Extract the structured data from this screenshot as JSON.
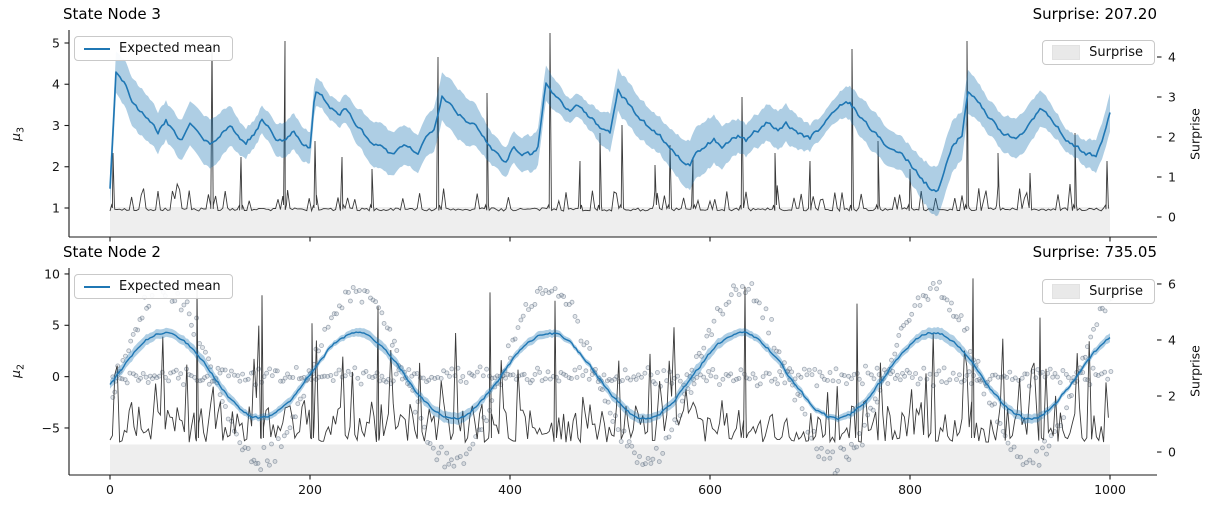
{
  "colors": {
    "background": "#ffffff",
    "mean_line": "#1f77b4",
    "mean_band_opacity": 0.36,
    "surprise_line": "#3a3a3a",
    "surprise_fill": "#eeeeee",
    "scatter_edge": "#55657a",
    "scatter_fill": "#7c8c9e",
    "axis_line": "#1a1a1a",
    "legend_patch": "#e9e9e9"
  },
  "chart_data": [
    {
      "type": "line",
      "title": "State Node 3",
      "right_title": "Surprise: 207.20",
      "ylabel_left_base": "μ",
      "ylabel_left_sub": "3",
      "ylabel_right": "Surprise",
      "legend_mean": "Expected mean",
      "legend_surprise": "Surprise",
      "x_range": [
        0,
        1000
      ],
      "x_ticks": [
        0,
        200,
        400,
        600,
        800,
        1000
      ],
      "x_ticklabels_visible": false,
      "ylim_left": [
        0.297,
        5.315
      ],
      "ylim_right": [
        -0.5,
        4.675
      ],
      "left_ticks": [
        5,
        4,
        3,
        2,
        1
      ],
      "right_ticks": [
        4,
        3,
        2,
        1,
        0
      ],
      "seed": 7,
      "series": {
        "expected_mean": {
          "band_halfwidth": 0.45,
          "noise_amp": 0.11,
          "anchors": [
            [
              0,
              1.5
            ],
            [
              6,
              4.3
            ],
            [
              14,
              4.05
            ],
            [
              22,
              3.6
            ],
            [
              30,
              3.35
            ],
            [
              40,
              3.05
            ],
            [
              48,
              2.85
            ],
            [
              56,
              3.1
            ],
            [
              64,
              2.8
            ],
            [
              72,
              2.65
            ],
            [
              80,
              3.05
            ],
            [
              88,
              2.8
            ],
            [
              96,
              2.6
            ],
            [
              104,
              2.55
            ],
            [
              112,
              2.85
            ],
            [
              120,
              3.0
            ],
            [
              128,
              2.7
            ],
            [
              136,
              2.6
            ],
            [
              144,
              2.8
            ],
            [
              152,
              3.15
            ],
            [
              160,
              2.95
            ],
            [
              168,
              2.65
            ],
            [
              176,
              2.6
            ],
            [
              184,
              2.9
            ],
            [
              192,
              2.6
            ],
            [
              200,
              2.45
            ],
            [
              205,
              3.85
            ],
            [
              212,
              3.7
            ],
            [
              220,
              3.45
            ],
            [
              228,
              3.25
            ],
            [
              236,
              3.4
            ],
            [
              244,
              3.1
            ],
            [
              252,
              2.85
            ],
            [
              260,
              2.6
            ],
            [
              268,
              2.5
            ],
            [
              276,
              2.4
            ],
            [
              284,
              2.25
            ],
            [
              292,
              2.5
            ],
            [
              300,
              2.45
            ],
            [
              308,
              2.35
            ],
            [
              316,
              2.7
            ],
            [
              324,
              2.95
            ],
            [
              332,
              3.75
            ],
            [
              340,
              3.55
            ],
            [
              348,
              3.3
            ],
            [
              356,
              3.15
            ],
            [
              364,
              3.0
            ],
            [
              372,
              2.75
            ],
            [
              380,
              2.5
            ],
            [
              388,
              2.3
            ],
            [
              396,
              2.15
            ],
            [
              404,
              2.5
            ],
            [
              412,
              2.35
            ],
            [
              420,
              2.3
            ],
            [
              428,
              2.5
            ],
            [
              436,
              4.05
            ],
            [
              444,
              3.75
            ],
            [
              452,
              3.55
            ],
            [
              460,
              3.35
            ],
            [
              468,
              3.5
            ],
            [
              476,
              3.3
            ],
            [
              484,
              3.1
            ],
            [
              492,
              2.9
            ],
            [
              500,
              2.85
            ],
            [
              508,
              3.9
            ],
            [
              516,
              3.6
            ],
            [
              524,
              3.35
            ],
            [
              532,
              3.1
            ],
            [
              540,
              2.95
            ],
            [
              548,
              2.8
            ],
            [
              556,
              2.6
            ],
            [
              564,
              2.35
            ],
            [
              572,
              2.15
            ],
            [
              580,
              2.05
            ],
            [
              588,
              2.35
            ],
            [
              596,
              2.5
            ],
            [
              604,
              2.65
            ],
            [
              612,
              2.5
            ],
            [
              620,
              2.6
            ],
            [
              628,
              2.75
            ],
            [
              636,
              2.6
            ],
            [
              644,
              2.8
            ],
            [
              652,
              2.95
            ],
            [
              660,
              3.1
            ],
            [
              668,
              2.9
            ],
            [
              676,
              3.05
            ],
            [
              684,
              2.9
            ],
            [
              692,
              2.75
            ],
            [
              700,
              2.7
            ],
            [
              708,
              2.9
            ],
            [
              716,
              3.15
            ],
            [
              724,
              3.35
            ],
            [
              732,
              3.5
            ],
            [
              740,
              3.55
            ],
            [
              748,
              3.3
            ],
            [
              756,
              3.05
            ],
            [
              764,
              2.85
            ],
            [
              772,
              2.6
            ],
            [
              780,
              2.45
            ],
            [
              788,
              2.35
            ],
            [
              796,
              2.2
            ],
            [
              804,
              1.95
            ],
            [
              812,
              1.7
            ],
            [
              820,
              1.5
            ],
            [
              828,
              1.45
            ],
            [
              836,
              2.1
            ],
            [
              844,
              2.55
            ],
            [
              852,
              2.8
            ],
            [
              858,
              3.85
            ],
            [
              866,
              3.6
            ],
            [
              874,
              3.35
            ],
            [
              882,
              3.15
            ],
            [
              890,
              2.9
            ],
            [
              898,
              2.75
            ],
            [
              906,
              2.65
            ],
            [
              914,
              2.85
            ],
            [
              922,
              3.15
            ],
            [
              930,
              3.45
            ],
            [
              938,
              3.25
            ],
            [
              946,
              3.0
            ],
            [
              954,
              2.75
            ],
            [
              962,
              2.55
            ],
            [
              970,
              2.4
            ],
            [
              978,
              2.3
            ],
            [
              986,
              2.25
            ],
            [
              992,
              2.6
            ],
            [
              1000,
              3.3
            ]
          ]
        },
        "surprise": {
          "axis": "right",
          "baseline": 0.15,
          "baseline_noise": 0.1,
          "spikes": [
            [
              3,
              1.6
            ],
            [
              102,
              4.3
            ],
            [
              131,
              1.5
            ],
            [
              175,
              4.4
            ],
            [
              205,
              1.9
            ],
            [
              232,
              1.5
            ],
            [
              262,
              1.2
            ],
            [
              328,
              4.0
            ],
            [
              377,
              3.1
            ],
            [
              440,
              4.6
            ],
            [
              470,
              1.4
            ],
            [
              490,
              2.1
            ],
            [
              512,
              2.3
            ],
            [
              545,
              1.3
            ],
            [
              560,
              1.8
            ],
            [
              583,
              1.5
            ],
            [
              632,
              3.0
            ],
            [
              665,
              1.6
            ],
            [
              700,
              1.4
            ],
            [
              742,
              4.2
            ],
            [
              768,
              1.9
            ],
            [
              800,
              1.2
            ],
            [
              857,
              4.4
            ],
            [
              888,
              1.6
            ],
            [
              920,
              1.1
            ],
            [
              965,
              2.1
            ],
            [
              997,
              1.4
            ]
          ]
        },
        "surprise_fill": {
          "axis": "right",
          "from": -0.5,
          "to": 0.25
        }
      }
    },
    {
      "type": "line+scatter",
      "title": "State Node 2",
      "right_title": "Surprise: 735.05",
      "ylabel_left_base": "μ",
      "ylabel_left_sub": "2",
      "ylabel_right": "Surprise",
      "legend_mean": "Expected mean",
      "legend_surprise": "Surprise",
      "x_range": [
        0,
        1000
      ],
      "x_ticks": [
        0,
        200,
        400,
        600,
        800,
        1000
      ],
      "x_ticklabels_visible": true,
      "ylim_left": [
        -9.58,
        10.58
      ],
      "ylim_right": [
        -0.82,
        6.57
      ],
      "left_ticks": [
        10,
        5,
        0,
        -5
      ],
      "right_ticks": [
        6,
        4,
        2,
        0
      ],
      "seed": 13,
      "series": {
        "expected_mean": {
          "shape": "sine",
          "amplitude": 4.15,
          "period": 192,
          "peak_x": 55,
          "offset": 0.1,
          "noise_amp": 0.24,
          "band_halfwidth": 0.42
        },
        "observations_sine": {
          "shape": "sine",
          "amplitude": 8.3,
          "period": 192,
          "peak_x": 55,
          "offset": 0.1,
          "noise_amp": 0.6,
          "spacing": 2.6
        },
        "observations_flat": {
          "offset": 0.05,
          "noise_amp": 0.5,
          "spacing": 2.6
        },
        "surprise": {
          "axis": "right",
          "baseline": 0.35,
          "baseline_noise": 1.5,
          "spikes": [
            [
              87,
              5.9
            ],
            [
              152,
              5.6
            ],
            [
              202,
              4.6
            ],
            [
              268,
              5.2
            ],
            [
              380,
              5.7
            ],
            [
              445,
              5.4
            ],
            [
              635,
              5.9
            ],
            [
              747,
              5.3
            ],
            [
              863,
              6.2
            ],
            [
              930,
              4.8
            ]
          ]
        },
        "surprise_fill": {
          "axis": "right",
          "from": -0.82,
          "to": 0.27
        }
      }
    }
  ]
}
